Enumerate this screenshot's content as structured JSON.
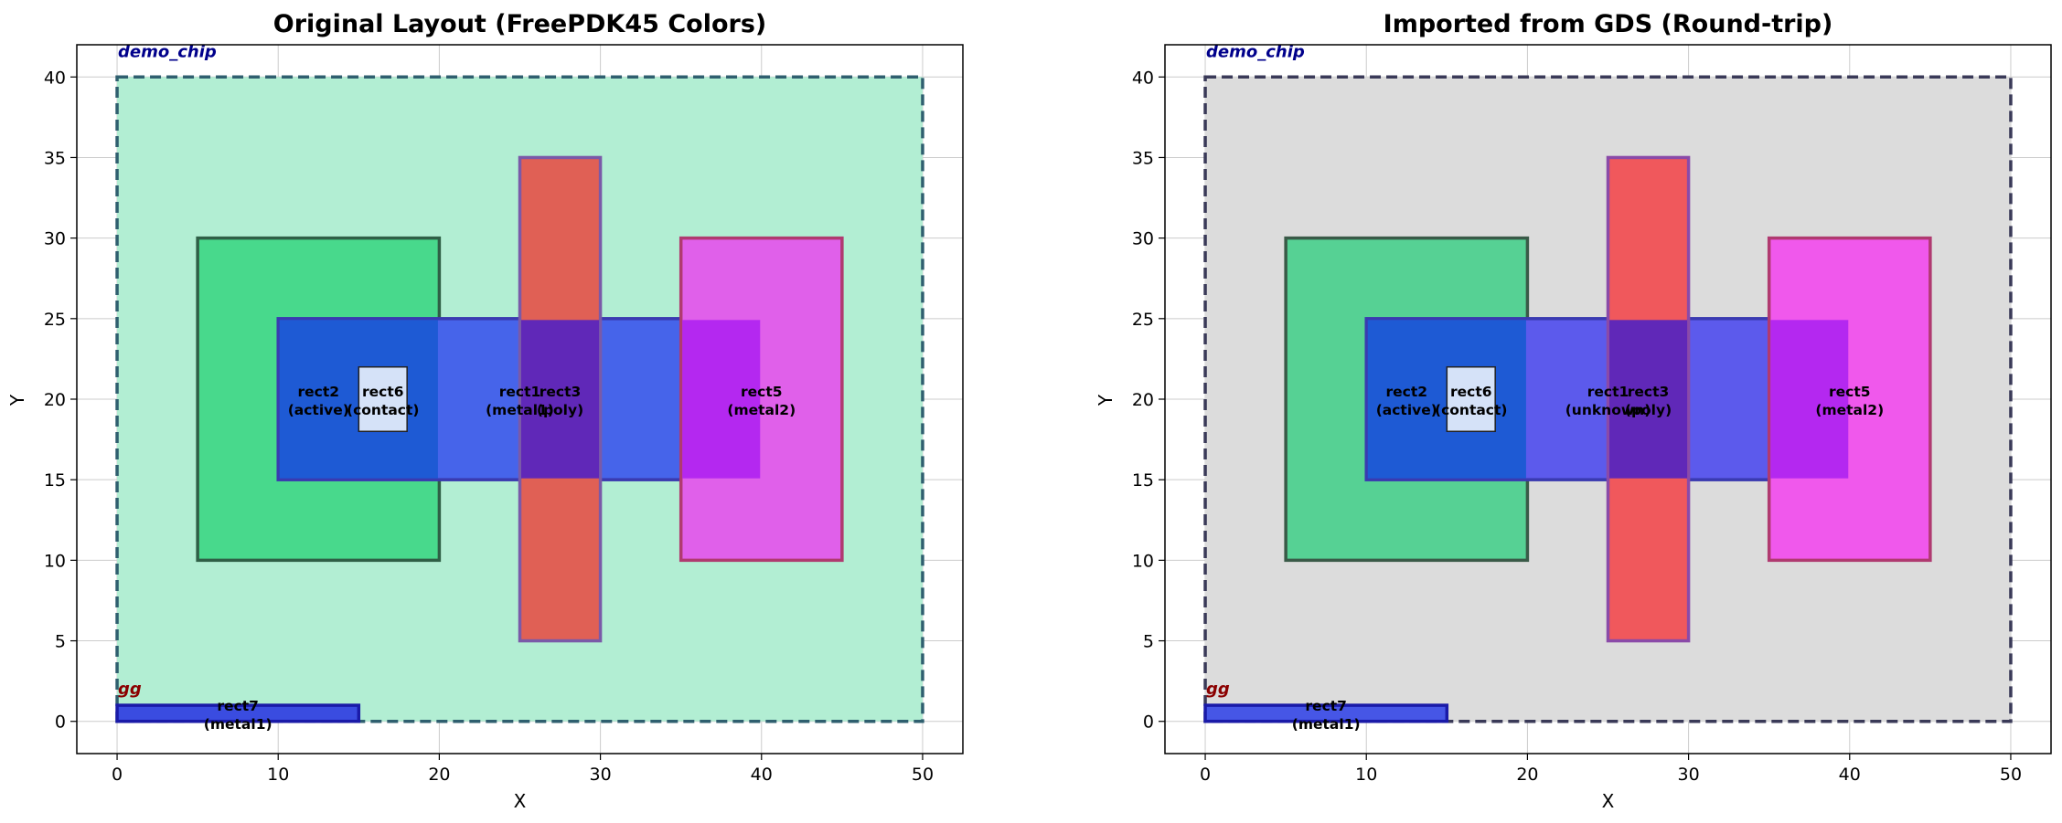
{
  "charts": [
    {
      "title": "Original Layout (FreePDK45 Colors)",
      "xlabel": "X",
      "ylabel": "Y",
      "xlim": [
        -2.5,
        52.5
      ],
      "ylim": [
        -2,
        42
      ],
      "xticks": [
        "0",
        "10",
        "20",
        "30",
        "40",
        "50"
      ],
      "yticks": [
        "0",
        "5",
        "10",
        "15",
        "20",
        "25",
        "30",
        "35",
        "40"
      ],
      "xtick_values": [
        0,
        10,
        20,
        30,
        40,
        50
      ],
      "ytick_values": [
        0,
        5,
        10,
        15,
        20,
        25,
        30,
        35,
        40
      ],
      "cell_labels": [
        {
          "text": "demo_chip",
          "x": 0,
          "y": 40,
          "color": "#00008b"
        },
        {
          "text": "gg",
          "x": 0,
          "y": 1,
          "color": "#8b0000"
        }
      ],
      "rects": [
        {
          "x0": 0,
          "y0": 0,
          "x1": 50,
          "y1": 40,
          "fill": "#b2eed3",
          "stroke": "#2f5f6f",
          "dash": true,
          "label": "",
          "layer": ""
        },
        {
          "x0": 5,
          "y0": 10,
          "x1": 20,
          "y1": 30,
          "fill": "#48d98c",
          "stroke": "#2f5f46",
          "dash": false,
          "label": "rect2",
          "layer": "(active)"
        },
        {
          "x0": 10,
          "y0": 15,
          "x1": 40,
          "y1": 25,
          "fill": "#4664ea",
          "stroke": "#3a3ab0",
          "dash": false,
          "label": "rect1",
          "layer": "(metal1)"
        },
        {
          "x0": 25,
          "y0": 5,
          "x1": 30,
          "y1": 35,
          "fill": "#e06055",
          "stroke": "#7a5aa8",
          "dash": false,
          "label": "rect3",
          "layer": "(poly)"
        },
        {
          "x0": 35,
          "y0": 10,
          "x1": 45,
          "y1": 30,
          "fill": "#e060ea",
          "stroke": "#b03a70",
          "dash": false,
          "label": "rect5",
          "layer": "(metal2)"
        },
        {
          "x0": 15,
          "y0": 18,
          "x1": 18,
          "y1": 22,
          "fill": "#d5e2f8",
          "stroke": "#222222",
          "dash": false,
          "label": "rect6",
          "layer": "(contact)"
        },
        {
          "x0": 0,
          "y0": 0,
          "x1": 15,
          "y1": 1,
          "fill": "#3a4ce0",
          "stroke": "#1a1aa8",
          "dash": false,
          "label": "rect7",
          "layer": "(metal1)"
        }
      ],
      "overlaps": [
        {
          "x0": 10,
          "y0": 15,
          "x1": 20,
          "y1": 25,
          "fill": "#1e5ad4"
        },
        {
          "x0": 25,
          "y0": 15,
          "x1": 30,
          "y1": 25,
          "fill": "#6028b8"
        },
        {
          "x0": 35,
          "y0": 15,
          "x1": 40,
          "y1": 25,
          "fill": "#b428f0"
        }
      ]
    },
    {
      "title": "Imported from GDS (Round-trip)",
      "xlabel": "X",
      "ylabel": "Y",
      "xlim": [
        -2.5,
        52.5
      ],
      "ylim": [
        -2,
        42
      ],
      "xticks": [
        "0",
        "10",
        "20",
        "30",
        "40",
        "50"
      ],
      "yticks": [
        "0",
        "5",
        "10",
        "15",
        "20",
        "25",
        "30",
        "35",
        "40"
      ],
      "xtick_values": [
        0,
        10,
        20,
        30,
        40,
        50
      ],
      "ytick_values": [
        0,
        5,
        10,
        15,
        20,
        25,
        30,
        35,
        40
      ],
      "cell_labels": [
        {
          "text": "demo_chip",
          "x": 0,
          "y": 40,
          "color": "#00008b"
        },
        {
          "text": "gg",
          "x": 0,
          "y": 1,
          "color": "#8b0000"
        }
      ],
      "rects": [
        {
          "x0": 0,
          "y0": 0,
          "x1": 50,
          "y1": 40,
          "fill": "#dcdcdc",
          "stroke": "#3a3a58",
          "dash": true,
          "label": "",
          "layer": ""
        },
        {
          "x0": 5,
          "y0": 10,
          "x1": 20,
          "y1": 30,
          "fill": "#56d194",
          "stroke": "#3a5a48",
          "dash": false,
          "label": "rect2",
          "layer": "(active)"
        },
        {
          "x0": 10,
          "y0": 15,
          "x1": 40,
          "y1": 25,
          "fill": "#5c5aec",
          "stroke": "#3a3ab0",
          "dash": false,
          "label": "rect1",
          "layer": "(unknown)"
        },
        {
          "x0": 25,
          "y0": 5,
          "x1": 30,
          "y1": 35,
          "fill": "#f0585c",
          "stroke": "#8a4aa8",
          "dash": false,
          "label": "rect3",
          "layer": "(poly)"
        },
        {
          "x0": 35,
          "y0": 10,
          "x1": 45,
          "y1": 30,
          "fill": "#f058ec",
          "stroke": "#b03a70",
          "dash": false,
          "label": "rect5",
          "layer": "(metal2)"
        },
        {
          "x0": 15,
          "y0": 18,
          "x1": 18,
          "y1": 22,
          "fill": "#d5e2f8",
          "stroke": "#222222",
          "dash": false,
          "label": "rect6",
          "layer": "(contact)"
        },
        {
          "x0": 0,
          "y0": 0,
          "x1": 15,
          "y1": 1,
          "fill": "#4656e6",
          "stroke": "#1a1aa8",
          "dash": false,
          "label": "rect7",
          "layer": "(metal1)"
        }
      ],
      "overlaps": [
        {
          "x0": 10,
          "y0": 15,
          "x1": 20,
          "y1": 25,
          "fill": "#1e5ad4"
        },
        {
          "x0": 25,
          "y0": 15,
          "x1": 30,
          "y1": 25,
          "fill": "#6028b8"
        },
        {
          "x0": 35,
          "y0": 15,
          "x1": 40,
          "y1": 25,
          "fill": "#b428f0"
        }
      ]
    }
  ],
  "chart_data": [
    {
      "type": "layout",
      "title": "Original Layout (FreePDK45 Colors)",
      "xlabel": "X",
      "ylabel": "Y",
      "xlim": [
        -2.5,
        52.5
      ],
      "ylim": [
        -2,
        42
      ],
      "grid": true,
      "shapes": [
        {
          "name": "demo_chip",
          "x": [
            0,
            50
          ],
          "y": [
            0,
            40
          ]
        },
        {
          "name": "rect2",
          "layer": "active",
          "x": [
            5,
            20
          ],
          "y": [
            10,
            30
          ]
        },
        {
          "name": "rect1",
          "layer": "metal1",
          "x": [
            10,
            40
          ],
          "y": [
            15,
            25
          ]
        },
        {
          "name": "rect3",
          "layer": "poly",
          "x": [
            25,
            30
          ],
          "y": [
            5,
            35
          ]
        },
        {
          "name": "rect5",
          "layer": "metal2",
          "x": [
            35,
            45
          ],
          "y": [
            10,
            30
          ]
        },
        {
          "name": "rect6",
          "layer": "contact",
          "x": [
            15,
            18
          ],
          "y": [
            18,
            22
          ]
        },
        {
          "name": "rect7",
          "layer": "metal1",
          "x": [
            0,
            15
          ],
          "y": [
            0,
            1
          ]
        }
      ]
    },
    {
      "type": "layout",
      "title": "Imported from GDS (Round-trip)",
      "xlabel": "X",
      "ylabel": "Y",
      "xlim": [
        -2.5,
        52.5
      ],
      "ylim": [
        -2,
        42
      ],
      "grid": true,
      "shapes": [
        {
          "name": "demo_chip",
          "x": [
            0,
            50
          ],
          "y": [
            0,
            40
          ]
        },
        {
          "name": "rect2",
          "layer": "active",
          "x": [
            5,
            20
          ],
          "y": [
            10,
            30
          ]
        },
        {
          "name": "rect1",
          "layer": "unknown",
          "x": [
            10,
            40
          ],
          "y": [
            15,
            25
          ]
        },
        {
          "name": "rect3",
          "layer": "poly",
          "x": [
            25,
            30
          ],
          "y": [
            5,
            35
          ]
        },
        {
          "name": "rect5",
          "layer": "metal2",
          "x": [
            35,
            45
          ],
          "y": [
            10,
            30
          ]
        },
        {
          "name": "rect6",
          "layer": "contact",
          "x": [
            15,
            18
          ],
          "y": [
            18,
            22
          ]
        },
        {
          "name": "rect7",
          "layer": "metal1",
          "x": [
            0,
            15
          ],
          "y": [
            0,
            1
          ]
        }
      ]
    }
  ]
}
